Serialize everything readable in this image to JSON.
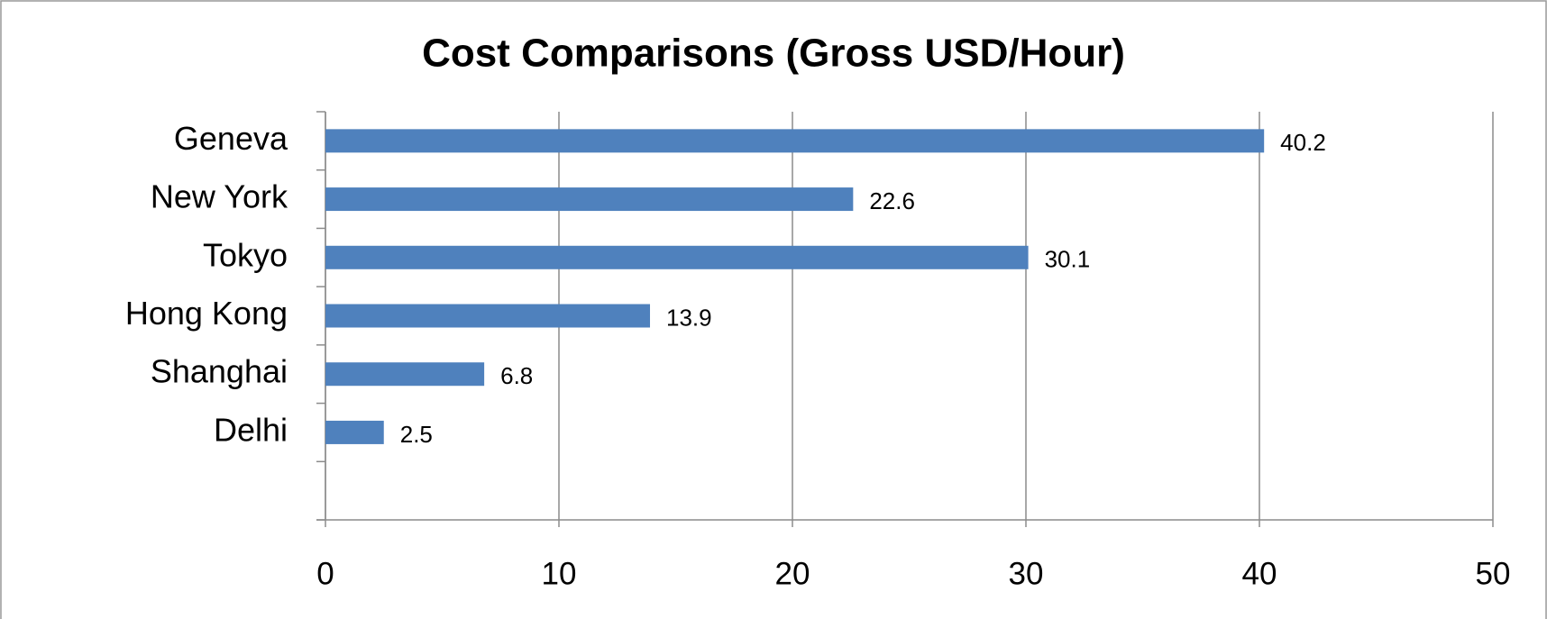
{
  "chart_data": {
    "type": "bar",
    "orientation": "horizontal",
    "title": "Cost Comparisons (Gross USD/Hour)",
    "categories": [
      "Geneva",
      "New York",
      "Tokyo",
      "Hong Kong",
      "Shanghai",
      "Delhi",
      null
    ],
    "values": [
      40.2,
      22.6,
      30.1,
      13.9,
      6.8,
      2.5,
      null
    ],
    "color": "#4f81bd",
    "xlim": [
      0,
      50
    ],
    "xticks": [
      0,
      10,
      20,
      30,
      40,
      50
    ],
    "grid": true
  }
}
